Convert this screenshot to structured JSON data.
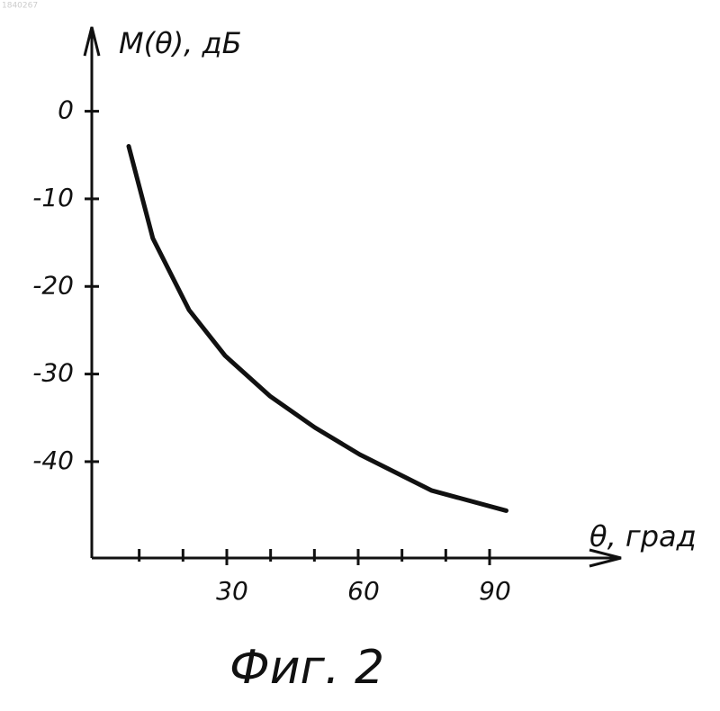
{
  "doc_number": "1840267",
  "caption": "Фиг. 2",
  "chart_data": {
    "type": "line",
    "y_label": "M(θ), дБ",
    "x_label": "θ, град",
    "x": [
      7.6,
      13.1,
      21.4,
      29.6,
      39.8,
      50.1,
      60.4,
      76.8,
      93.8
    ],
    "values": [
      -4.0,
      -14.5,
      -22.7,
      -27.9,
      -32.5,
      -36.1,
      -39.2,
      -43.3,
      -45.6
    ],
    "color": "#111111",
    "xlim": [
      0,
      120
    ],
    "ylim": [
      -51,
      9
    ],
    "xticks": [
      30,
      60,
      90
    ],
    "xminor_ticks": [
      10,
      20,
      40,
      50,
      70,
      80
    ],
    "yticks": [
      0,
      -10,
      -20,
      -30,
      -40
    ]
  }
}
